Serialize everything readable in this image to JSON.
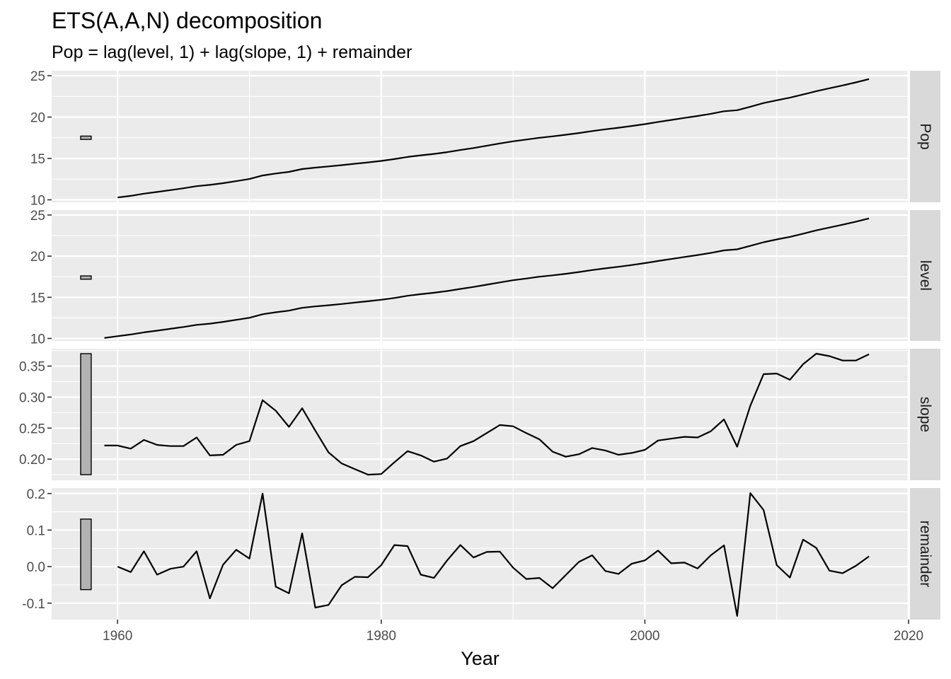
{
  "chart_data": {
    "type": "line",
    "title": "ETS(A,A,N) decomposition",
    "subtitle": "Pop = lag(level, 1) + lag(slope, 1) + remainder",
    "xlabel": "Year",
    "xlim": [
      1955,
      2020
    ],
    "x_ticks": [
      "1960",
      "1980",
      "2000",
      "2020"
    ],
    "x_tick_values": [
      1960,
      1980,
      2000,
      2020
    ],
    "grid": true,
    "facets": [
      {
        "label": "Pop",
        "ylim": [
          9.7,
          25.6
        ],
        "y_ticks": [
          "10",
          "15",
          "20",
          "25"
        ],
        "y_tick_values": [
          10,
          15,
          20,
          25
        ],
        "scale_bar": [
          17.3,
          17.7
        ],
        "x_start": 1960,
        "values": [
          10.28,
          10.48,
          10.74,
          10.95,
          11.17,
          11.39,
          11.65,
          11.8,
          12.01,
          12.26,
          12.51,
          12.94,
          13.18,
          13.38,
          13.72,
          13.89,
          14.03,
          14.19,
          14.36,
          14.52,
          14.7,
          14.92,
          15.18,
          15.38,
          15.55,
          15.76,
          16.02,
          16.26,
          16.53,
          16.81,
          17.07,
          17.28,
          17.5,
          17.67,
          17.86,
          18.07,
          18.31,
          18.52,
          18.71,
          18.92,
          19.15,
          19.41,
          19.65,
          19.9,
          20.13,
          20.39,
          20.7,
          20.83,
          21.25,
          21.69,
          22.03,
          22.34,
          22.73,
          23.13,
          23.48,
          23.82,
          24.19,
          24.59
        ]
      },
      {
        "label": "level",
        "ylim": [
          9.7,
          25.6
        ],
        "y_ticks": [
          "10",
          "15",
          "20",
          "25"
        ],
        "y_tick_values": [
          10,
          15,
          20,
          25
        ],
        "scale_bar": [
          17.2,
          17.6
        ],
        "x_start": 1959,
        "values": [
          10.06,
          10.28,
          10.48,
          10.74,
          10.95,
          11.17,
          11.39,
          11.65,
          11.8,
          12.01,
          12.26,
          12.51,
          12.94,
          13.18,
          13.38,
          13.72,
          13.89,
          14.03,
          14.19,
          14.36,
          14.52,
          14.7,
          14.92,
          15.18,
          15.38,
          15.55,
          15.76,
          16.02,
          16.26,
          16.53,
          16.81,
          17.07,
          17.28,
          17.5,
          17.67,
          17.86,
          18.07,
          18.31,
          18.52,
          18.71,
          18.92,
          19.15,
          19.41,
          19.65,
          19.9,
          20.13,
          20.39,
          20.7,
          20.83,
          21.25,
          21.69,
          22.03,
          22.34,
          22.73,
          23.13,
          23.48,
          23.82,
          24.19,
          24.59
        ]
      },
      {
        "label": "slope",
        "ylim": [
          0.166,
          0.378
        ],
        "y_ticks": [
          "0.20",
          "0.25",
          "0.30",
          "0.35"
        ],
        "y_tick_values": [
          0.2,
          0.25,
          0.3,
          0.35
        ],
        "scale_bar": [
          0.175,
          0.37
        ],
        "x_start": 1959,
        "values": [
          0.222,
          0.222,
          0.217,
          0.231,
          0.223,
          0.221,
          0.221,
          0.235,
          0.206,
          0.207,
          0.223,
          0.229,
          0.295,
          0.278,
          0.252,
          0.282,
          0.246,
          0.211,
          0.193,
          0.184,
          0.175,
          0.176,
          0.195,
          0.213,
          0.206,
          0.196,
          0.201,
          0.221,
          0.229,
          0.242,
          0.255,
          0.253,
          0.242,
          0.232,
          0.212,
          0.204,
          0.208,
          0.218,
          0.214,
          0.207,
          0.21,
          0.215,
          0.23,
          0.233,
          0.236,
          0.235,
          0.245,
          0.264,
          0.22,
          0.286,
          0.337,
          0.338,
          0.328,
          0.353,
          0.37,
          0.366,
          0.359,
          0.359,
          0.369
        ]
      },
      {
        "label": "remainder",
        "ylim": [
          -0.145,
          0.215
        ],
        "y_ticks": [
          "-0.1",
          "0.0",
          "0.1",
          "0.2"
        ],
        "y_tick_values": [
          -0.1,
          0.0,
          0.1,
          0.2
        ],
        "scale_bar": [
          -0.063,
          0.13
        ],
        "x_start": 1960,
        "values": [
          0.0,
          -0.015,
          0.042,
          -0.022,
          -0.006,
          0.0,
          0.042,
          -0.087,
          0.005,
          0.046,
          0.022,
          0.2,
          -0.055,
          -0.073,
          0.091,
          -0.112,
          -0.105,
          -0.051,
          -0.028,
          -0.029,
          0.004,
          0.059,
          0.056,
          -0.022,
          -0.031,
          0.017,
          0.059,
          0.025,
          0.04,
          0.041,
          -0.003,
          -0.034,
          -0.031,
          -0.059,
          -0.023,
          0.013,
          0.031,
          -0.012,
          -0.02,
          0.008,
          0.017,
          0.044,
          0.009,
          0.011,
          -0.005,
          0.031,
          0.058,
          -0.135,
          0.201,
          0.155,
          0.004,
          -0.03,
          0.074,
          0.051,
          -0.011,
          -0.018,
          0.002,
          0.028
        ]
      }
    ]
  }
}
